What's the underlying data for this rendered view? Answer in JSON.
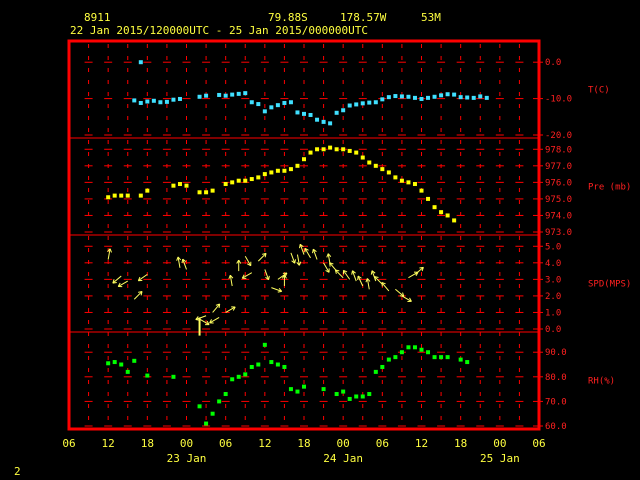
{
  "header": {
    "station": "8911",
    "lat": "79.88S",
    "lon": "178.57W",
    "elev": "53M",
    "period": "22 Jan 2015/120000UTC - 25 Jan 2015/000000UTC"
  },
  "footer": {
    "page": "2"
  },
  "colors": {
    "frame": "#ff0000",
    "text": "#ffff40",
    "temp": "#40e0ff",
    "pres": "#ffff00",
    "wind": "#ffff60",
    "rh": "#00ff00"
  },
  "chart_data": {
    "type": "scatter",
    "x_axis": {
      "unit": "hours from 22 Jan 06UTC",
      "range": [
        0,
        72
      ],
      "tick_labels": [
        "06",
        "12",
        "18",
        "00",
        "06",
        "12",
        "18",
        "00",
        "06",
        "12",
        "18",
        "00",
        "06"
      ],
      "date_labels": [
        {
          "label": "23 Jan",
          "hour": 18
        },
        {
          "label": "24 Jan",
          "hour": 42
        },
        {
          "label": "25 Jan",
          "hour": 66
        }
      ]
    },
    "panels": [
      {
        "name": "T(C)",
        "range": [
          -20,
          5
        ],
        "tick_values": [
          0,
          -10,
          -20
        ],
        "tick_labels": [
          "0.0",
          "-10.0",
          "-20.0"
        ],
        "points": [
          [
            10,
            -10.5
          ],
          [
            11,
            -11.2
          ],
          [
            12,
            -10.8
          ],
          [
            13,
            -10.6
          ],
          [
            14,
            -11
          ],
          [
            15,
            -10.9
          ],
          [
            16,
            -10.3
          ],
          [
            17,
            -10.1
          ],
          [
            20,
            -9.5
          ],
          [
            21,
            -9.2
          ],
          [
            23,
            -9
          ],
          [
            24,
            -9.2
          ],
          [
            25,
            -8.9
          ],
          [
            26,
            -8.7
          ],
          [
            27,
            -8.5
          ],
          [
            28,
            -11
          ],
          [
            29,
            -11.5
          ],
          [
            30,
            -13.5
          ],
          [
            31,
            -12.4
          ],
          [
            32,
            -11.8
          ],
          [
            33,
            -11.2
          ],
          [
            34,
            -11
          ],
          [
            35,
            -13.8
          ],
          [
            36,
            -14.2
          ],
          [
            37,
            -14.5
          ],
          [
            38,
            -15.8
          ],
          [
            39,
            -16.4
          ],
          [
            40,
            -16.8
          ],
          [
            41,
            -13.9
          ],
          [
            42,
            -13.2
          ],
          [
            43,
            -11.9
          ],
          [
            44,
            -11.6
          ],
          [
            45,
            -11.3
          ],
          [
            46,
            -11.1
          ],
          [
            47,
            -11.0
          ],
          [
            48,
            -10.2
          ],
          [
            49,
            -9.6
          ],
          [
            50,
            -9.3
          ],
          [
            51,
            -9.4
          ],
          [
            52,
            -9.5
          ],
          [
            53,
            -9.8
          ],
          [
            54,
            -10.1
          ],
          [
            55,
            -9.8
          ],
          [
            56,
            -9.5
          ],
          [
            57,
            -9.1
          ],
          [
            58,
            -8.8
          ],
          [
            59,
            -8.9
          ],
          [
            60,
            -9.6
          ],
          [
            61,
            -9.7
          ],
          [
            62,
            -9.8
          ],
          [
            63,
            -9.4
          ],
          [
            64,
            -9.8
          ]
        ],
        "outlier": [
          [
            11,
            0
          ]
        ]
      },
      {
        "name": "Pre (mb)",
        "range": [
          973,
          978.5
        ],
        "tick_values": [
          978,
          977,
          976,
          975,
          974,
          973
        ],
        "tick_labels": [
          "978.0",
          "977.0",
          "976.0",
          "975.0",
          "974.0",
          "973.0"
        ],
        "points": [
          [
            6,
            975.1
          ],
          [
            7,
            975.2
          ],
          [
            8,
            975.2
          ],
          [
            9,
            975.2
          ],
          [
            11,
            975.2
          ],
          [
            12,
            975.5
          ],
          [
            16,
            975.8
          ],
          [
            17,
            975.9
          ],
          [
            18,
            975.8
          ],
          [
            20,
            975.4
          ],
          [
            21,
            975.4
          ],
          [
            22,
            975.5
          ],
          [
            24,
            975.9
          ],
          [
            25,
            976.0
          ],
          [
            26,
            976.1
          ],
          [
            27,
            976.1
          ],
          [
            28,
            976.2
          ],
          [
            29,
            976.3
          ],
          [
            30,
            976.5
          ],
          [
            31,
            976.6
          ],
          [
            32,
            976.7
          ],
          [
            33,
            976.7
          ],
          [
            34,
            976.8
          ],
          [
            35,
            977.0
          ],
          [
            36,
            977.4
          ],
          [
            37,
            977.8
          ],
          [
            38,
            978.0
          ],
          [
            39,
            978.0
          ],
          [
            40,
            978.1
          ],
          [
            41,
            978.0
          ],
          [
            42,
            978.0
          ],
          [
            43,
            977.9
          ],
          [
            44,
            977.8
          ],
          [
            45,
            977.5
          ],
          [
            46,
            977.2
          ],
          [
            47,
            977.0
          ],
          [
            48,
            976.8
          ],
          [
            49,
            976.6
          ],
          [
            50,
            976.3
          ],
          [
            51,
            976.1
          ],
          [
            52,
            976.0
          ],
          [
            53,
            975.9
          ],
          [
            54,
            975.5
          ],
          [
            55,
            975.0
          ],
          [
            56,
            974.5
          ],
          [
            57,
            974.2
          ],
          [
            58,
            974.0
          ],
          [
            59,
            973.7
          ]
        ]
      },
      {
        "name": "SPD(MPS)",
        "range": [
          0,
          5.5
        ],
        "tick_values": [
          5,
          4,
          3,
          2,
          1,
          0
        ],
        "tick_labels": [
          "5.0",
          "4.0",
          "3.0",
          "2.0",
          "1.0",
          "0.0"
        ],
        "points": [
          [
            6,
            4.2,
            80
          ],
          [
            8,
            3.2,
            220
          ],
          [
            9,
            2.9,
            210
          ],
          [
            10,
            1.8,
            45
          ],
          [
            12,
            3.3,
            215
          ],
          [
            17,
            3.7,
            100
          ],
          [
            18,
            3.6,
            110
          ],
          [
            20,
            0.6,
            330
          ],
          [
            21,
            0.8,
            200
          ],
          [
            22,
            1.0,
            50
          ],
          [
            23,
            0.7,
            210
          ],
          [
            24,
            1.0,
            30
          ],
          [
            25,
            2.6,
            100
          ],
          [
            26,
            3.5,
            90
          ],
          [
            27,
            4.4,
            300
          ],
          [
            28,
            3.4,
            210
          ],
          [
            29,
            4.1,
            45
          ],
          [
            30,
            3.6,
            290
          ],
          [
            31,
            2.5,
            340
          ],
          [
            32,
            3.0,
            35
          ],
          [
            33,
            2.6,
            90
          ],
          [
            34,
            4.6,
            290
          ],
          [
            35,
            4.5,
            280
          ],
          [
            36,
            4.5,
            110
          ],
          [
            37,
            4.3,
            120
          ],
          [
            38,
            4.2,
            110
          ],
          [
            39,
            4.0,
            300
          ],
          [
            40,
            3.9,
            100
          ],
          [
            41,
            3.5,
            130
          ],
          [
            42,
            3.1,
            135
          ],
          [
            43,
            3.0,
            125
          ],
          [
            44,
            2.9,
            110
          ],
          [
            45,
            2.6,
            115
          ],
          [
            46,
            2.4,
            100
          ],
          [
            47,
            2.9,
            110
          ],
          [
            48,
            2.7,
            135
          ],
          [
            49,
            2.3,
            130
          ],
          [
            50,
            2.4,
            320
          ],
          [
            51,
            2.0,
            330
          ],
          [
            52,
            3.1,
            30
          ],
          [
            53,
            3.3,
            40
          ]
        ]
      },
      {
        "name": "RH(%)",
        "range": [
          60,
          97
        ],
        "tick_values": [
          90,
          80,
          70,
          60
        ],
        "tick_labels": [
          "90.0",
          "80.0",
          "70.0",
          "60.0"
        ],
        "points": [
          [
            6,
            85.5
          ],
          [
            7,
            86
          ],
          [
            8,
            85
          ],
          [
            9,
            82
          ],
          [
            10,
            86.5
          ],
          [
            12,
            80.5
          ],
          [
            16,
            80
          ],
          [
            20,
            68
          ],
          [
            21,
            61
          ],
          [
            22,
            65
          ],
          [
            23,
            70
          ],
          [
            24,
            73
          ],
          [
            25,
            79
          ],
          [
            26,
            80
          ],
          [
            27,
            81
          ],
          [
            28,
            84
          ],
          [
            29,
            85
          ],
          [
            30,
            93
          ],
          [
            31,
            86
          ],
          [
            32,
            85
          ],
          [
            33,
            84
          ],
          [
            34,
            75
          ],
          [
            35,
            74
          ],
          [
            36,
            76
          ],
          [
            39,
            75
          ],
          [
            41,
            73
          ],
          [
            42,
            74
          ],
          [
            43,
            71
          ],
          [
            44,
            72
          ],
          [
            45,
            72
          ],
          [
            46,
            73
          ],
          [
            47,
            82
          ],
          [
            48,
            84
          ],
          [
            49,
            87
          ],
          [
            50,
            88
          ],
          [
            51,
            90
          ],
          [
            52,
            92
          ],
          [
            53,
            92
          ],
          [
            54,
            91
          ],
          [
            55,
            90
          ],
          [
            56,
            88
          ],
          [
            57,
            88
          ],
          [
            58,
            88
          ],
          [
            60,
            87
          ],
          [
            61,
            86
          ]
        ]
      }
    ]
  }
}
